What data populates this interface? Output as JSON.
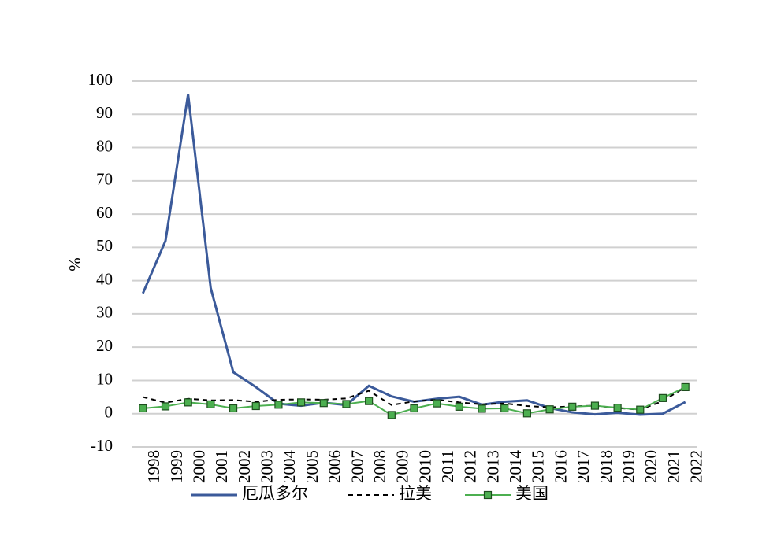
{
  "chart_data": {
    "type": "line",
    "y_label": "%",
    "categories": [
      "1998",
      "1999",
      "2000",
      "2001",
      "2002",
      "2003",
      "2004",
      "2005",
      "2006",
      "2007",
      "2008",
      "2009",
      "2010",
      "2011",
      "2012",
      "2013",
      "2014",
      "2015",
      "2016",
      "2017",
      "2018",
      "2019",
      "2020",
      "2021",
      "2022"
    ],
    "series": [
      {
        "name": "厄瓜多尔",
        "color": "#3b5a9a",
        "style": "solid",
        "marker": false,
        "values": [
          36.2,
          52,
          96,
          37.8,
          12.5,
          8,
          3,
          2.4,
          3.3,
          2.6,
          8.4,
          5.2,
          3.6,
          4.5,
          5.1,
          2.7,
          3.6,
          4.0,
          1.7,
          0.4,
          -0.2,
          0.3,
          -0.3,
          0,
          3.5
        ]
      },
      {
        "name": "拉美",
        "color": "#000000",
        "style": "dashed",
        "marker": false,
        "values": [
          5.0,
          3.3,
          4.5,
          4.0,
          4.1,
          3.6,
          4.2,
          4.3,
          4.2,
          4.6,
          6.9,
          2.6,
          3.7,
          4.2,
          3.4,
          2.8,
          3.1,
          2.3,
          1.9,
          2.2,
          2.4,
          1.7,
          1.2,
          3.8,
          8.0
        ]
      },
      {
        "name": "美国",
        "color": "#4caf50",
        "style": "solid",
        "marker": true,
        "values": [
          1.6,
          2.2,
          3.4,
          2.8,
          1.6,
          2.3,
          2.7,
          3.4,
          3.2,
          2.9,
          3.8,
          -0.4,
          1.6,
          3.1,
          2.1,
          1.5,
          1.6,
          0.1,
          1.3,
          2.1,
          2.4,
          1.8,
          1.2,
          4.7,
          8.0
        ]
      }
    ],
    "ylim": [
      -10,
      100
    ],
    "yticks": [
      -10,
      0,
      10,
      20,
      30,
      40,
      50,
      60,
      70,
      80,
      90,
      100
    ],
    "grid": true,
    "legend": "bottom"
  }
}
